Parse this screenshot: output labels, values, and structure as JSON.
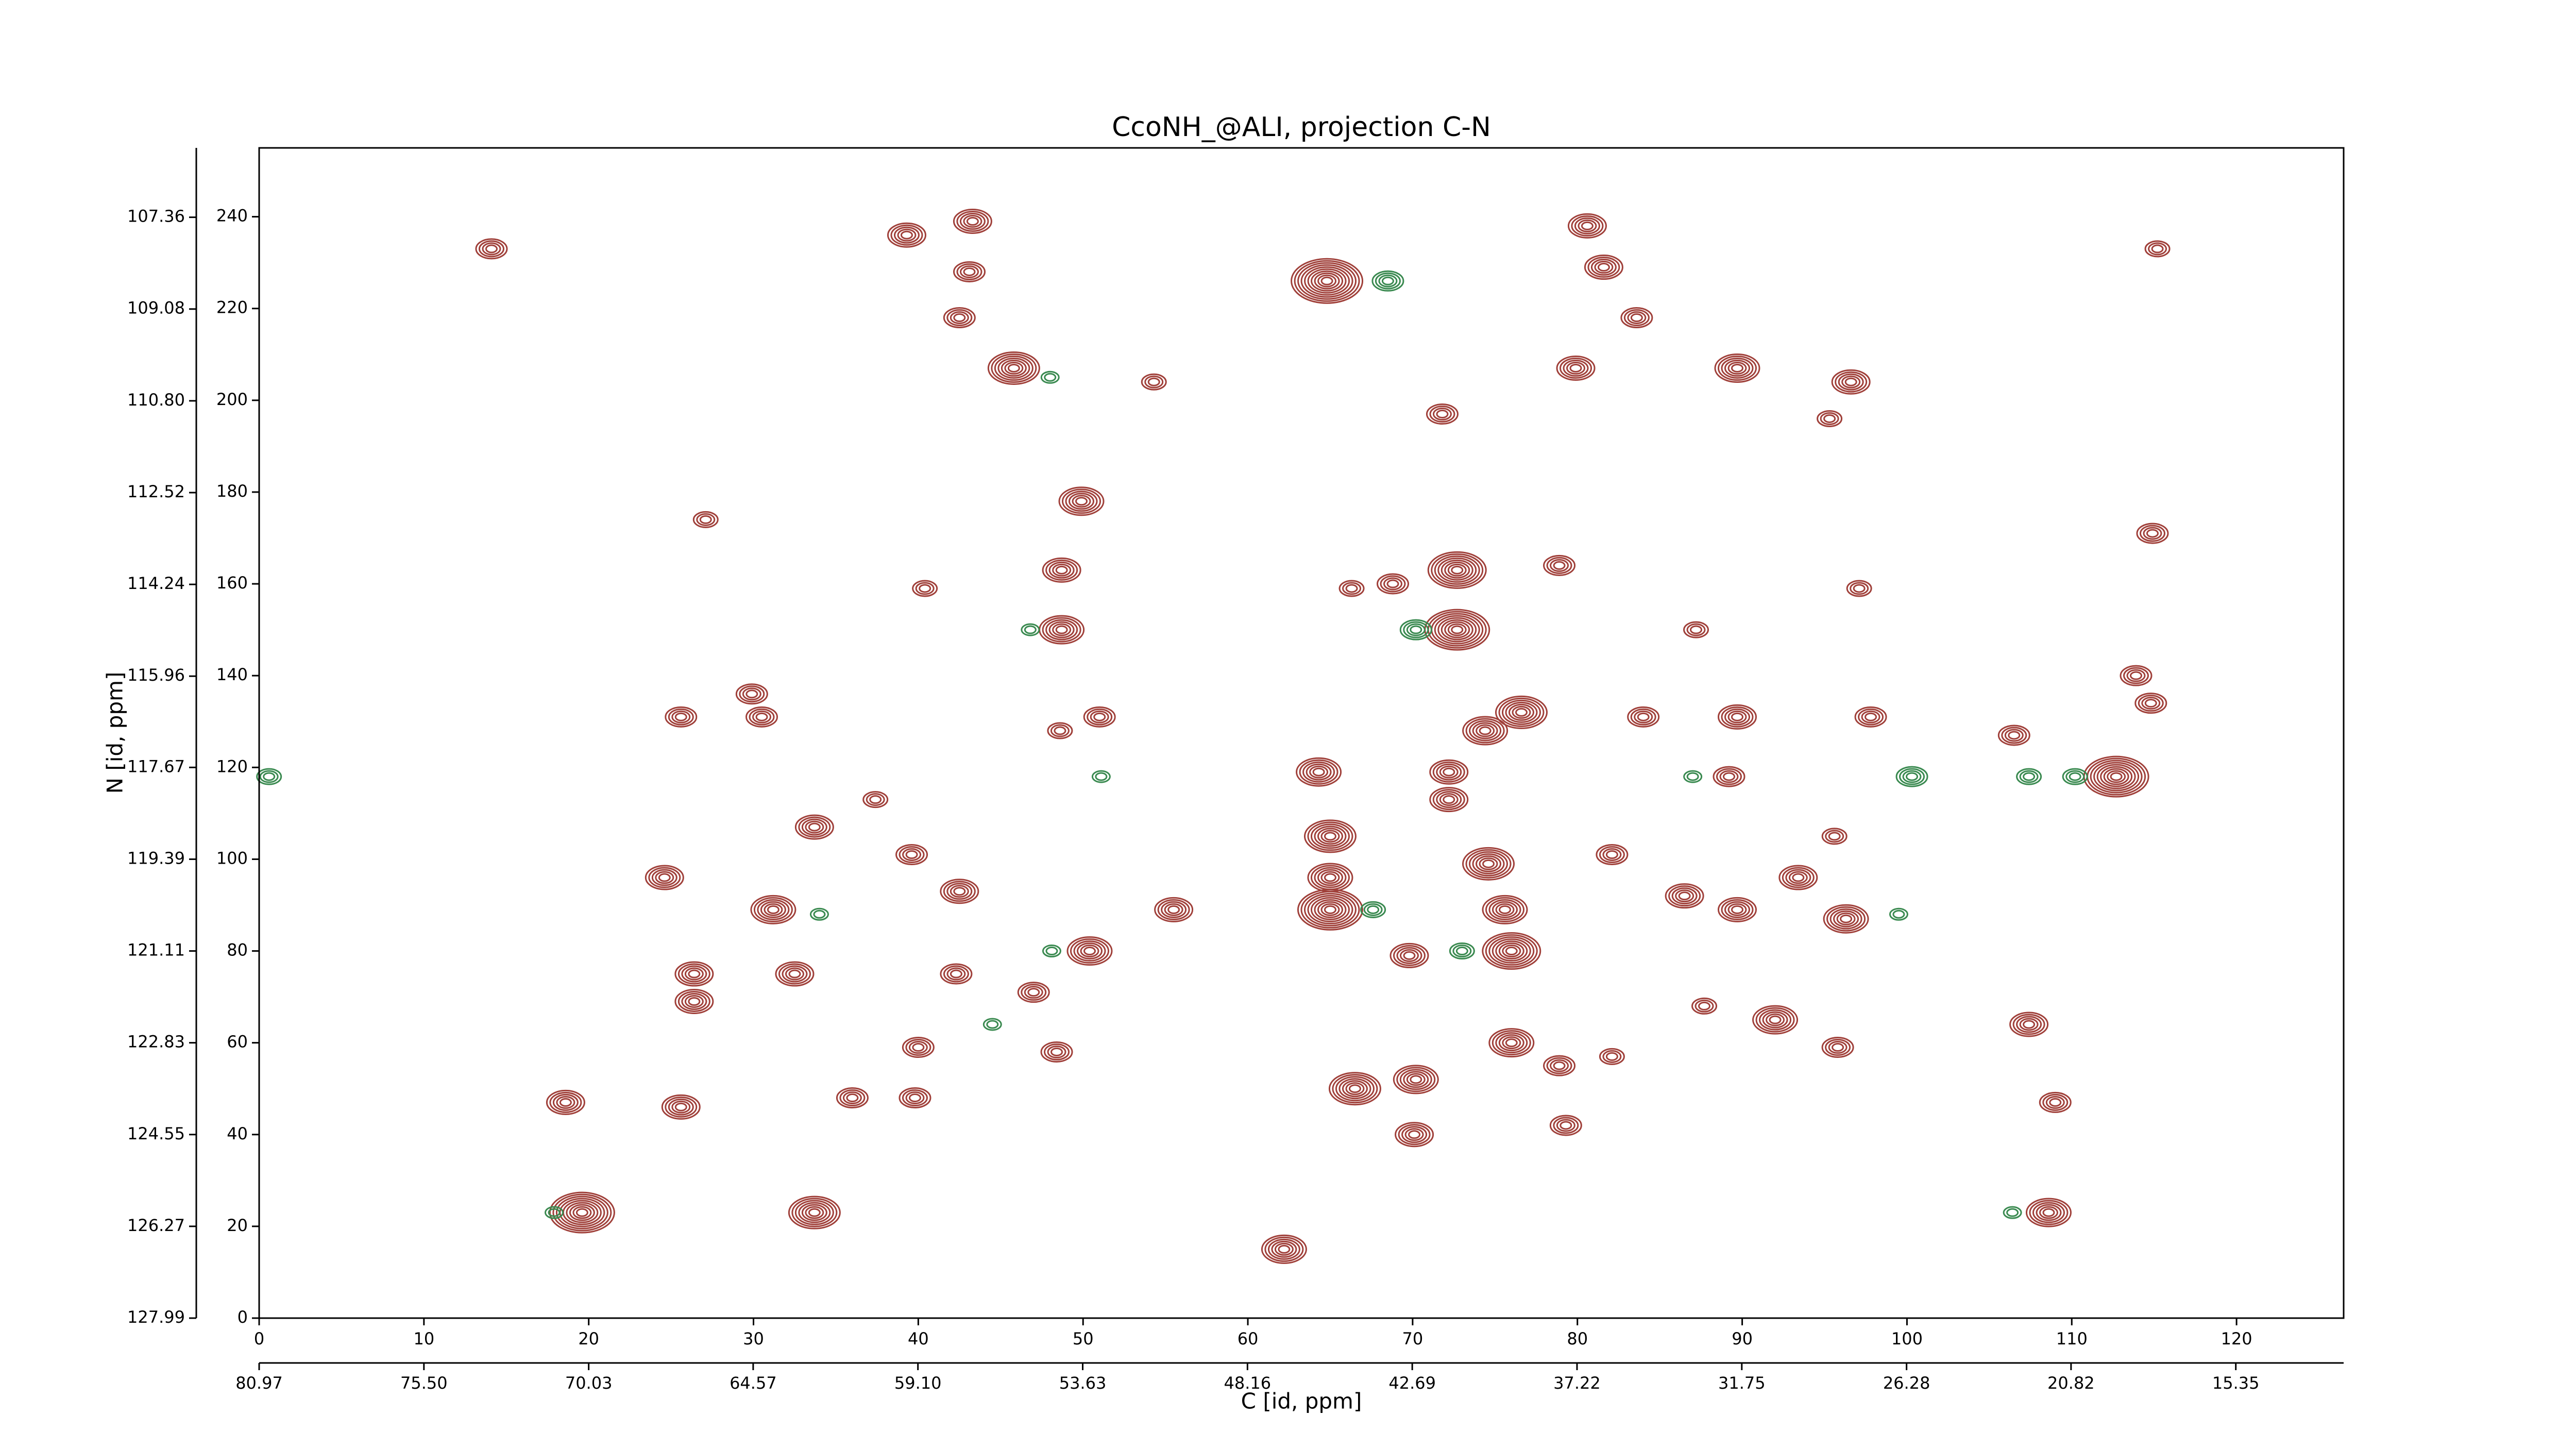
{
  "chart_data": {
    "type": "contour",
    "title": "CcoNH_@ALI, projection C-N",
    "xlabel": "C [id, ppm]",
    "ylabel": "N [id, ppm]",
    "xlim": [
      0,
      126.5
    ],
    "ylim": [
      0,
      255
    ],
    "xticks": [
      0,
      10,
      20,
      30,
      40,
      50,
      60,
      70,
      80,
      90,
      100,
      110,
      120
    ],
    "yticks": [
      0,
      20,
      40,
      60,
      80,
      100,
      120,
      140,
      160,
      180,
      200,
      220,
      240
    ],
    "x2lim": [
      80.97,
      11.77
    ],
    "y2lim": [
      127.99,
      106.06
    ],
    "x2ticks": [
      80.97,
      {
        "value": 75.5,
        "label": "75.50"
      },
      70.03,
      64.57,
      {
        "value": 59.1,
        "label": "59.10"
      },
      53.63,
      48.16,
      42.69,
      37.22,
      31.75,
      26.28,
      20.82,
      15.35
    ],
    "y2ticks": [
      127.99,
      126.27,
      124.55,
      122.83,
      121.11,
      119.39,
      117.67,
      115.96,
      114.24,
      112.52,
      {
        "value": 110.8,
        "label": "110.80"
      },
      109.08,
      107.36
    ],
    "series": [
      {
        "color": "#a0403a",
        "x": [
          19.6,
          33.7,
          62.2,
          108.6,
          66.5,
          70.2,
          70.1,
          79.3,
          18.6,
          25.6,
          92,
          95.8,
          107.4,
          109,
          65,
          65,
          65,
          74.6,
          76,
          69.8,
          26.4,
          26.4,
          32.5,
          50.4,
          31.2,
          24.6,
          64.3,
          72.2,
          72.2,
          74.4,
          76.6,
          112.7,
          89.2,
          89.7,
          84,
          106.5,
          114.8,
          113.9,
          97.8,
          25.6,
          29.9,
          30.5,
          48.7,
          48.7,
          72.7,
          72.7,
          40.4,
          49.9,
          27.1,
          114.9,
          97.1,
          64.8,
          80.6,
          81.6,
          83.6,
          43.3,
          43.1,
          42.5,
          39.3,
          14.1,
          45.8,
          79.9,
          89.7,
          96.6,
          95.3,
          71.8,
          54.3,
          115.2,
          33.7,
          37.4,
          39.6,
          42.5,
          42.3,
          40,
          36,
          39.8,
          47,
          51,
          48.6,
          48.4,
          93.4,
          96.3,
          86.5,
          89.7,
          75.6,
          87.7,
          82.1,
          87.2,
          82.1,
          76,
          78.9,
          95.6,
          55.5,
          66.3,
          68.8,
          78.9
        ],
        "y": [
          23,
          23,
          15,
          23,
          50,
          52,
          40,
          42,
          47,
          46,
          65,
          59,
          64,
          47,
          89,
          96,
          105,
          99,
          80,
          79,
          75,
          69,
          75,
          80,
          89,
          96,
          119,
          119,
          113,
          128,
          132,
          118,
          118,
          131,
          131,
          127,
          134,
          140,
          131,
          131,
          136,
          131,
          150,
          163,
          150,
          163,
          159,
          178,
          174,
          171,
          159,
          226,
          238,
          229,
          218,
          239,
          228,
          218,
          236,
          233,
          207,
          207,
          207,
          204,
          196,
          197,
          204,
          233,
          107,
          113,
          101,
          93,
          75,
          59,
          48,
          48,
          71,
          131,
          128,
          58,
          96,
          87,
          92,
          89,
          89,
          68,
          101,
          150,
          57,
          60,
          55,
          105,
          89,
          159,
          160,
          164
        ],
        "levels": [
          9,
          7,
          6,
          6,
          7,
          6,
          5,
          4,
          5,
          5,
          6,
          4,
          5,
          4,
          9,
          6,
          7,
          7,
          8,
          5,
          5,
          5,
          5,
          6,
          6,
          5,
          6,
          5,
          5,
          6,
          7,
          9,
          4,
          5,
          4,
          4,
          4,
          4,
          4,
          4,
          4,
          4,
          6,
          5,
          9,
          8,
          3,
          6,
          3,
          4,
          3,
          10,
          5,
          5,
          4,
          5,
          4,
          4,
          5,
          4,
          7,
          5,
          6,
          5,
          3,
          4,
          3,
          3,
          5,
          3,
          4,
          5,
          4,
          4,
          4,
          4,
          4,
          4,
          3,
          4,
          5,
          6,
          5,
          5,
          6,
          3,
          4,
          3,
          3,
          6,
          4,
          3,
          5,
          3,
          4,
          4
        ]
      },
      {
        "color": "#3a8a50",
        "x": [
          0.6,
          68.5,
          46.8,
          70.2,
          48,
          100.3,
          107.4,
          110.2,
          87,
          67.6,
          73,
          51.1,
          34,
          48.1,
          44.5,
          99.5,
          106.4,
          17.9
        ],
        "y": [
          118,
          226,
          150,
          150,
          205,
          118,
          118,
          118,
          118,
          89,
          80,
          118,
          88,
          80,
          64,
          88,
          23,
          23
        ],
        "levels": [
          3,
          4,
          2,
          4,
          2,
          4,
          3,
          3,
          2,
          3,
          3,
          2,
          2,
          2,
          2,
          2,
          2,
          2
        ]
      }
    ]
  }
}
